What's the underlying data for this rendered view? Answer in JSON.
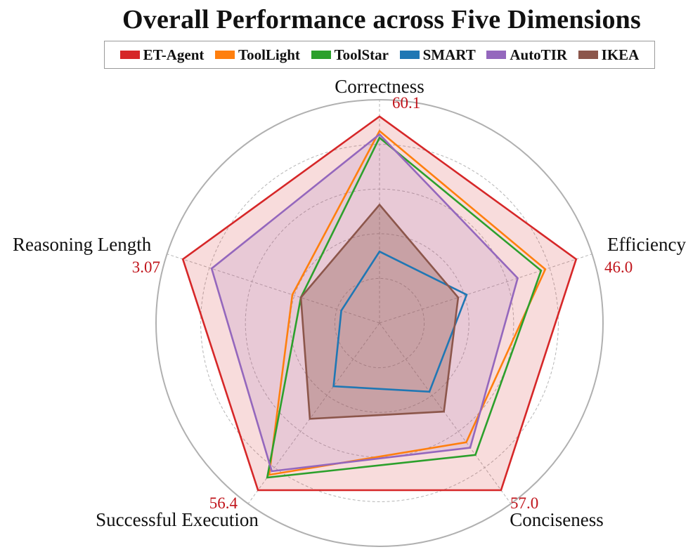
{
  "chart_data": {
    "type": "radar",
    "title": "Overall Performance across Five Dimensions",
    "axes": [
      {
        "label": "Correctness",
        "max_label": "60.1"
      },
      {
        "label": "Efficiency",
        "max_label": "46.0"
      },
      {
        "label": "Conciseness",
        "max_label": "57.0"
      },
      {
        "label": "Successful Execution",
        "max_label": "56.4"
      },
      {
        "label": "Reasoning Length",
        "max_label": "3.07"
      }
    ],
    "scale": "normalized",
    "ylim": [
      0,
      1
    ],
    "grid": true,
    "legend_position": "top",
    "series": [
      {
        "name": "ET-Agent",
        "color": "#d62728",
        "fill_opacity": 0.16,
        "values": [
          0.925,
          0.925,
          0.925,
          0.925,
          0.925
        ]
      },
      {
        "name": "ToolLight",
        "color": "#ff7f0e",
        "fill_opacity": 0.0,
        "values": [
          0.86,
          0.78,
          0.66,
          0.84,
          0.41
        ]
      },
      {
        "name": "ToolStar",
        "color": "#2ca02c",
        "fill_opacity": 0.0,
        "values": [
          0.83,
          0.76,
          0.73,
          0.855,
          0.37
        ]
      },
      {
        "name": "SMART",
        "color": "#1f77b4",
        "fill_opacity": 0.0,
        "values": [
          0.32,
          0.41,
          0.38,
          0.35,
          0.18
        ]
      },
      {
        "name": "AutoTIR",
        "color": "#9467bd",
        "fill_opacity": 0.16,
        "values": [
          0.845,
          0.65,
          0.69,
          0.82,
          0.79
        ]
      },
      {
        "name": "IKEA",
        "color": "#8c564b",
        "fill_opacity": 0.35,
        "values": [
          0.53,
          0.37,
          0.49,
          0.53,
          0.37
        ]
      }
    ]
  }
}
